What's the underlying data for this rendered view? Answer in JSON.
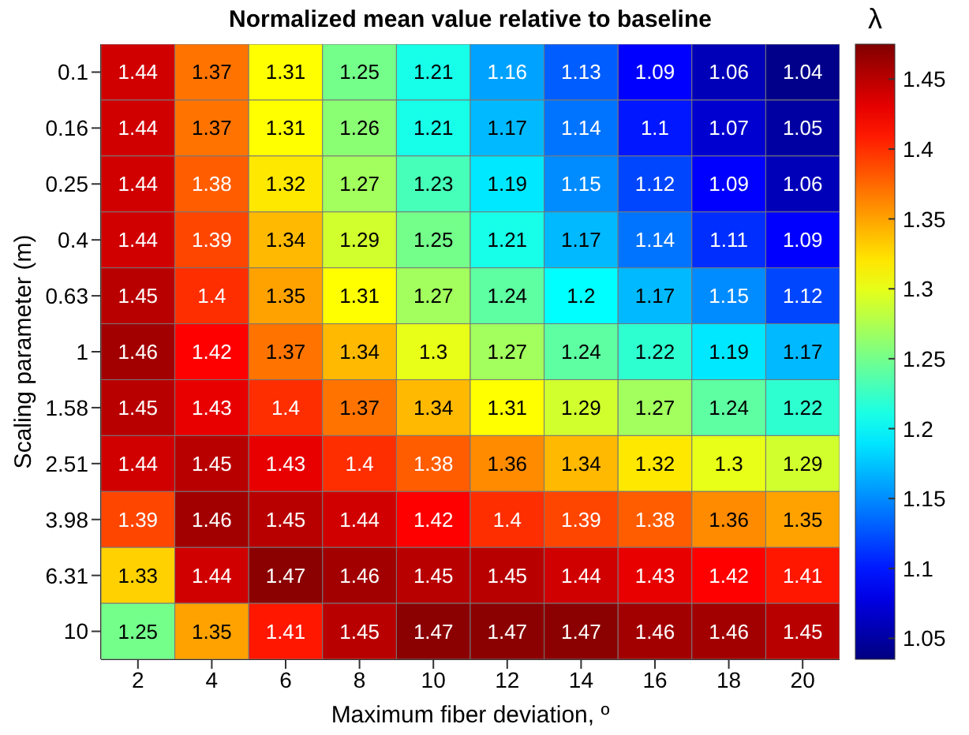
{
  "chart_data": {
    "type": "heatmap",
    "title": "Normalized mean value relative to baseline",
    "xlabel": "Maximum fiber deviation, º",
    "ylabel": "Scaling parameter (m)",
    "clabel": "λ",
    "categories": [
      "2",
      "4",
      "6",
      "8",
      "10",
      "12",
      "14",
      "16",
      "18",
      "20"
    ],
    "y_categories": [
      "0.1",
      "0.16",
      "0.25",
      "0.4",
      "0.63",
      "1",
      "1.58",
      "2.51",
      "3.98",
      "6.31",
      "10"
    ],
    "cells": [
      [
        1.44,
        1.37,
        1.31,
        1.25,
        1.21,
        1.16,
        1.13,
        1.09,
        1.06,
        1.04
      ],
      [
        1.44,
        1.37,
        1.31,
        1.26,
        1.21,
        1.17,
        1.14,
        1.1,
        1.07,
        1.05
      ],
      [
        1.44,
        1.38,
        1.32,
        1.27,
        1.23,
        1.19,
        1.15,
        1.12,
        1.09,
        1.06
      ],
      [
        1.44,
        1.39,
        1.34,
        1.29,
        1.25,
        1.21,
        1.17,
        1.14,
        1.11,
        1.09
      ],
      [
        1.45,
        1.4,
        1.35,
        1.31,
        1.27,
        1.24,
        1.2,
        1.17,
        1.15,
        1.12
      ],
      [
        1.46,
        1.42,
        1.37,
        1.34,
        1.3,
        1.27,
        1.24,
        1.22,
        1.19,
        1.17
      ],
      [
        1.45,
        1.43,
        1.4,
        1.37,
        1.34,
        1.31,
        1.29,
        1.27,
        1.24,
        1.22
      ],
      [
        1.44,
        1.45,
        1.43,
        1.4,
        1.38,
        1.36,
        1.34,
        1.32,
        1.3,
        1.29
      ],
      [
        1.39,
        1.46,
        1.45,
        1.44,
        1.42,
        1.4,
        1.39,
        1.38,
        1.36,
        1.35
      ],
      [
        1.33,
        1.44,
        1.47,
        1.46,
        1.45,
        1.45,
        1.44,
        1.43,
        1.42,
        1.41
      ],
      [
        1.25,
        1.35,
        1.41,
        1.45,
        1.47,
        1.47,
        1.47,
        1.46,
        1.46,
        1.45
      ]
    ],
    "clim": [
      1.035,
      1.475
    ],
    "cticks": [
      1.05,
      1.1,
      1.15,
      1.2,
      1.25,
      1.3,
      1.35,
      1.4,
      1.45
    ],
    "data_labels": true
  }
}
